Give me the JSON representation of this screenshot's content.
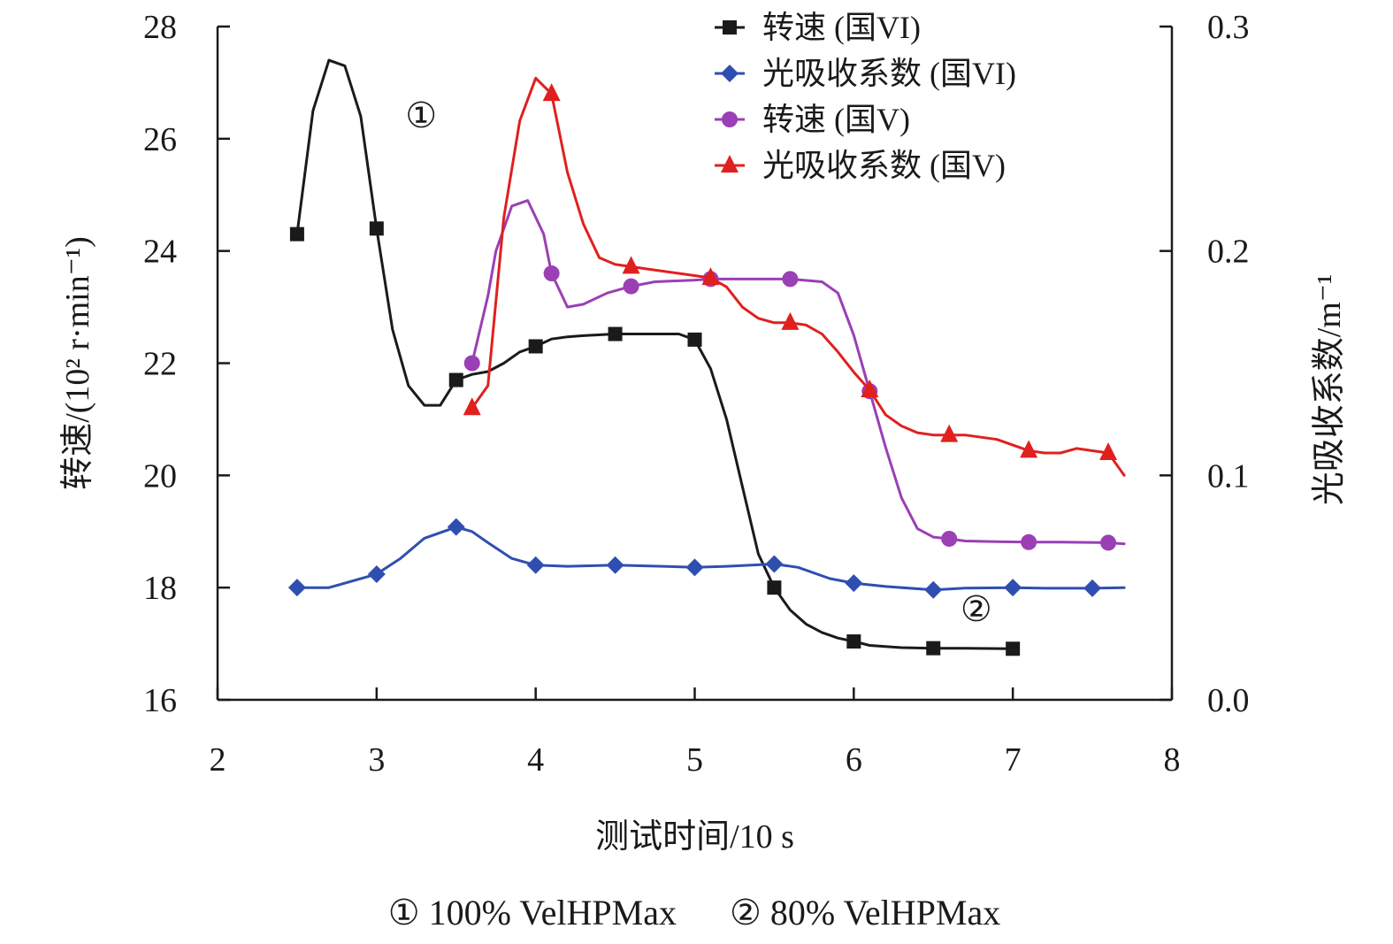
{
  "chart_data": {
    "type": "line",
    "title": "",
    "xlabel": "测试时间/10 s",
    "ylabel_left": "转速/(10² r·min⁻¹)",
    "ylabel_right": "光吸收系数/m⁻¹",
    "xlim": [
      2,
      8
    ],
    "ylim_left": [
      16,
      28
    ],
    "ylim_right": [
      0.0,
      0.3
    ],
    "x_ticks": [
      2,
      3,
      4,
      5,
      6,
      7,
      8
    ],
    "y_left_ticks": [
      16,
      18,
      20,
      22,
      24,
      26,
      28
    ],
    "y_right_ticks": [
      "0.0",
      "0.1",
      "0.2",
      "0.3"
    ],
    "y_right_tick_values": [
      0.0,
      0.1,
      0.2,
      0.3
    ],
    "grid": false,
    "legend_position": "top-right",
    "series": [
      {
        "name": "转速 (国VI)",
        "axis": "left",
        "color": "#1a1a1a",
        "marker": "square",
        "line": [
          [
            2.5,
            24.3
          ],
          [
            2.6,
            26.5
          ],
          [
            2.7,
            27.4
          ],
          [
            2.8,
            27.3
          ],
          [
            2.9,
            26.4
          ],
          [
            3.0,
            24.4
          ],
          [
            3.1,
            22.6
          ],
          [
            3.2,
            21.6
          ],
          [
            3.3,
            21.25
          ],
          [
            3.4,
            21.25
          ],
          [
            3.5,
            21.7
          ],
          [
            3.6,
            21.8
          ],
          [
            3.7,
            21.85
          ],
          [
            3.8,
            22.0
          ],
          [
            3.9,
            22.2
          ],
          [
            4.0,
            22.3
          ],
          [
            4.1,
            22.43
          ],
          [
            4.2,
            22.47
          ],
          [
            4.3,
            22.49
          ],
          [
            4.5,
            22.52
          ],
          [
            4.7,
            22.52
          ],
          [
            4.9,
            22.52
          ],
          [
            5.0,
            22.42
          ],
          [
            5.1,
            21.9
          ],
          [
            5.2,
            21.0
          ],
          [
            5.3,
            19.8
          ],
          [
            5.4,
            18.6
          ],
          [
            5.5,
            18.0
          ],
          [
            5.6,
            17.6
          ],
          [
            5.7,
            17.35
          ],
          [
            5.8,
            17.2
          ],
          [
            5.9,
            17.1
          ],
          [
            6.0,
            17.04
          ],
          [
            6.1,
            16.97
          ],
          [
            6.3,
            16.93
          ],
          [
            6.5,
            16.92
          ],
          [
            6.7,
            16.92
          ],
          [
            7.0,
            16.91
          ]
        ],
        "markers": [
          [
            2.5,
            24.3
          ],
          [
            3.0,
            24.4
          ],
          [
            3.5,
            21.7
          ],
          [
            4.0,
            22.3
          ],
          [
            4.5,
            22.52
          ],
          [
            5.0,
            22.42
          ],
          [
            5.5,
            18.0
          ],
          [
            6.0,
            17.04
          ],
          [
            6.5,
            16.92
          ],
          [
            7.0,
            16.91
          ]
        ]
      },
      {
        "name": "光吸收系数 (国VI)",
        "axis": "right",
        "color": "#2f4fb0",
        "marker": "diamond",
        "line": [
          [
            2.5,
            0.05
          ],
          [
            2.7,
            0.05
          ],
          [
            2.85,
            0.053
          ],
          [
            3.0,
            0.056
          ],
          [
            3.15,
            0.063
          ],
          [
            3.3,
            0.072
          ],
          [
            3.5,
            0.077
          ],
          [
            3.6,
            0.075
          ],
          [
            3.7,
            0.07
          ],
          [
            3.85,
            0.063
          ],
          [
            4.0,
            0.06
          ],
          [
            4.2,
            0.0595
          ],
          [
            4.5,
            0.06
          ],
          [
            4.8,
            0.0595
          ],
          [
            5.0,
            0.059
          ],
          [
            5.2,
            0.0595
          ],
          [
            5.5,
            0.0605
          ],
          [
            5.65,
            0.059
          ],
          [
            5.85,
            0.054
          ],
          [
            6.0,
            0.052
          ],
          [
            6.2,
            0.0505
          ],
          [
            6.5,
            0.049
          ],
          [
            6.7,
            0.0498
          ],
          [
            7.0,
            0.05
          ],
          [
            7.2,
            0.0497
          ],
          [
            7.5,
            0.0497
          ],
          [
            7.7,
            0.05
          ]
        ],
        "markers": [
          [
            2.5,
            0.05
          ],
          [
            3.0,
            0.056
          ],
          [
            3.5,
            0.077
          ],
          [
            4.0,
            0.06
          ],
          [
            4.5,
            0.06
          ],
          [
            5.0,
            0.059
          ],
          [
            5.5,
            0.0605
          ],
          [
            6.0,
            0.052
          ],
          [
            6.5,
            0.049
          ],
          [
            7.0,
            0.05
          ],
          [
            7.5,
            0.0497
          ]
        ]
      },
      {
        "name": "转速 (国V)",
        "axis": "left",
        "color": "#9b3fb5",
        "marker": "circle",
        "line": [
          [
            3.6,
            22.0
          ],
          [
            3.7,
            23.2
          ],
          [
            3.75,
            24.0
          ],
          [
            3.85,
            24.8
          ],
          [
            3.95,
            24.9
          ],
          [
            4.05,
            24.3
          ],
          [
            4.1,
            23.6
          ],
          [
            4.2,
            23.0
          ],
          [
            4.3,
            23.05
          ],
          [
            4.45,
            23.25
          ],
          [
            4.6,
            23.37
          ],
          [
            4.75,
            23.45
          ],
          [
            5.0,
            23.48
          ],
          [
            5.1,
            23.5
          ],
          [
            5.3,
            23.5
          ],
          [
            5.6,
            23.5
          ],
          [
            5.8,
            23.45
          ],
          [
            5.9,
            23.25
          ],
          [
            6.0,
            22.5
          ],
          [
            6.1,
            21.5
          ],
          [
            6.2,
            20.5
          ],
          [
            6.3,
            19.6
          ],
          [
            6.4,
            19.05
          ],
          [
            6.5,
            18.9
          ],
          [
            6.6,
            18.87
          ],
          [
            6.7,
            18.83
          ],
          [
            6.9,
            18.82
          ],
          [
            7.1,
            18.81
          ],
          [
            7.3,
            18.81
          ],
          [
            7.6,
            18.8
          ],
          [
            7.7,
            18.78
          ]
        ],
        "markers": [
          [
            3.6,
            22.0
          ],
          [
            4.1,
            23.6
          ],
          [
            4.6,
            23.37
          ],
          [
            5.1,
            23.5
          ],
          [
            5.6,
            23.5
          ],
          [
            6.1,
            21.5
          ],
          [
            6.6,
            18.87
          ],
          [
            7.1,
            18.81
          ],
          [
            7.6,
            18.8
          ]
        ]
      },
      {
        "name": "光吸收系数 (国V)",
        "axis": "right",
        "color": "#e0201f",
        "marker": "triangle",
        "line": [
          [
            3.6,
            0.13
          ],
          [
            3.7,
            0.14
          ],
          [
            3.8,
            0.215
          ],
          [
            3.9,
            0.258
          ],
          [
            4.0,
            0.277
          ],
          [
            4.1,
            0.27
          ],
          [
            4.2,
            0.235
          ],
          [
            4.3,
            0.212
          ],
          [
            4.4,
            0.197
          ],
          [
            4.5,
            0.194
          ],
          [
            4.6,
            0.193
          ],
          [
            4.7,
            0.192
          ],
          [
            4.9,
            0.19
          ],
          [
            5.1,
            0.188
          ],
          [
            5.2,
            0.184
          ],
          [
            5.3,
            0.175
          ],
          [
            5.4,
            0.17
          ],
          [
            5.5,
            0.168
          ],
          [
            5.6,
            0.168
          ],
          [
            5.7,
            0.167
          ],
          [
            5.8,
            0.163
          ],
          [
            5.9,
            0.155
          ],
          [
            6.0,
            0.146
          ],
          [
            6.1,
            0.138
          ],
          [
            6.2,
            0.127
          ],
          [
            6.3,
            0.122
          ],
          [
            6.4,
            0.119
          ],
          [
            6.5,
            0.118
          ],
          [
            6.6,
            0.118
          ],
          [
            6.7,
            0.118
          ],
          [
            6.9,
            0.116
          ],
          [
            7.1,
            0.111
          ],
          [
            7.2,
            0.11
          ],
          [
            7.3,
            0.11
          ],
          [
            7.4,
            0.112
          ],
          [
            7.6,
            0.11
          ],
          [
            7.7,
            0.1
          ]
        ],
        "markers": [
          [
            3.6,
            0.13
          ],
          [
            4.1,
            0.27
          ],
          [
            4.6,
            0.193
          ],
          [
            5.1,
            0.188
          ],
          [
            5.6,
            0.168
          ],
          [
            6.1,
            0.138
          ],
          [
            6.6,
            0.118
          ],
          [
            7.1,
            0.111
          ],
          [
            7.6,
            0.11
          ]
        ]
      }
    ],
    "annotations": [
      {
        "text": "①",
        "x": 3.28,
        "y": 26.2,
        "axis": "left"
      },
      {
        "text": "②",
        "x": 6.77,
        "y": 17.4,
        "axis": "left"
      }
    ],
    "footnote": "① 100% VelHPMax      ② 80% VelHPMax"
  }
}
